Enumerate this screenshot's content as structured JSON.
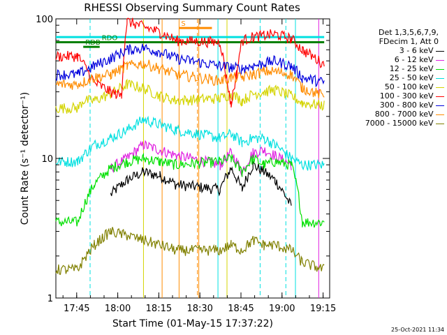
{
  "chart_data": {
    "type": "line",
    "title": "RHESSI Observing Summary Count Rates",
    "xlabel": "Start Time (01-May-15 17:37:22)",
    "ylabel": "Count Rate (s⁻¹ detector⁻¹)",
    "y_scale": "log",
    "ylim": [
      1,
      100
    ],
    "y_ticks": [
      {
        "value": 1,
        "label": "1"
      },
      {
        "value": 10,
        "label": "10"
      },
      {
        "value": 100,
        "label": "100"
      }
    ],
    "xlim_minutes_from_start": [
      0,
      100
    ],
    "x_ticks": [
      {
        "minutes": 7.6,
        "label": "17:45"
      },
      {
        "minutes": 22.6,
        "label": "18:00"
      },
      {
        "minutes": 37.6,
        "label": "18:15"
      },
      {
        "minutes": 52.6,
        "label": "18:30"
      },
      {
        "minutes": 67.6,
        "label": "18:45"
      },
      {
        "minutes": 82.6,
        "label": "19:00"
      },
      {
        "minutes": 97.6,
        "label": "19:15"
      }
    ],
    "legend": {
      "header_lines": [
        "Det 1,3,5,6,7,9,",
        "FDecim 1, Att 0"
      ],
      "position": "right"
    },
    "series": [
      {
        "name": "3 - 6 keV",
        "color": "#000000",
        "x": [
          14,
          20,
          26,
          32,
          38,
          44,
          60,
          64,
          68,
          72,
          76,
          80,
          86,
          90
        ],
        "values": [
          null,
          5.5,
          7.0,
          8.0,
          7.5,
          6.5,
          6.0,
          8.5,
          6.0,
          9.0,
          8.0,
          7.0,
          4.5,
          null
        ]
      },
      {
        "name": "6 - 12 keV",
        "color": "#e020e0",
        "x": [
          14,
          20,
          26,
          32,
          38,
          44,
          60,
          64,
          68,
          72,
          76,
          80,
          86,
          90
        ],
        "values": [
          null,
          8.5,
          10.0,
          12.5,
          11.5,
          10.5,
          9.0,
          11.0,
          8.0,
          11.0,
          11.5,
          10.5,
          9.0,
          null
        ]
      },
      {
        "name": "12 - 25 keV",
        "color": "#00e000",
        "x": [
          0,
          8,
          14,
          20,
          26,
          32,
          38,
          44,
          60,
          64,
          68,
          72,
          76,
          80,
          86,
          90,
          98
        ],
        "values": [
          3.5,
          3.5,
          6.5,
          8.5,
          9.5,
          10.0,
          9.5,
          9.0,
          9.5,
          10.0,
          8.0,
          10.0,
          9.0,
          9.5,
          9.0,
          3.5,
          3.5
        ]
      },
      {
        "name": "25 - 50 keV",
        "color": "#00e0e0",
        "x": [
          0,
          8,
          14,
          20,
          26,
          32,
          38,
          44,
          60,
          64,
          68,
          72,
          76,
          80,
          86,
          90,
          98
        ],
        "values": [
          9.5,
          9.5,
          12.5,
          14.0,
          16.0,
          19.0,
          17.5,
          16.0,
          14.0,
          15.0,
          13.0,
          14.0,
          14.0,
          12.5,
          10.0,
          9.0,
          9.0
        ]
      },
      {
        "name": "50 - 100 keV",
        "color": "#d4d400",
        "x": [
          0,
          8,
          10,
          14,
          20,
          26,
          32,
          38,
          44,
          60,
          64,
          68,
          72,
          76,
          80,
          86,
          90,
          98
        ],
        "values": [
          23,
          23,
          26,
          26,
          29,
          34,
          32,
          28,
          26,
          27,
          29,
          26,
          29,
          30,
          31,
          28,
          25,
          24
        ]
      },
      {
        "name": "100 - 300 keV",
        "color": "#ff0000",
        "x": [
          0,
          8,
          14,
          20,
          24,
          26,
          32,
          38,
          44,
          60,
          62,
          64,
          66,
          68,
          72,
          76,
          80,
          86,
          90,
          98
        ],
        "values": [
          54,
          54,
          35,
          30,
          28,
          96,
          88,
          80,
          70,
          68,
          40,
          24,
          40,
          70,
          74,
          76,
          78,
          72,
          60,
          47
        ]
      },
      {
        "name": "300 - 800 keV",
        "color": "#0000dd",
        "x": [
          0,
          8,
          14,
          20,
          26,
          32,
          38,
          44,
          60,
          64,
          68,
          72,
          76,
          80,
          86,
          90,
          98
        ],
        "values": [
          40,
          40,
          46,
          52,
          60,
          62,
          58,
          52,
          46,
          45,
          44,
          46,
          48,
          50,
          46,
          38,
          35
        ]
      },
      {
        "name": "800 - 7000 keV",
        "color": "#ff8c00",
        "x": [
          0,
          8,
          14,
          20,
          26,
          32,
          38,
          44,
          60,
          64,
          68,
          72,
          76,
          80,
          86,
          90,
          98
        ],
        "values": [
          34,
          34,
          38,
          40,
          46,
          48,
          44,
          40,
          36,
          38,
          38,
          40,
          42,
          42,
          40,
          32,
          28
        ]
      },
      {
        "name": "7000 - 15000 keV",
        "color": "#808000",
        "x": [
          0,
          8,
          14,
          20,
          26,
          32,
          38,
          44,
          60,
          64,
          68,
          72,
          76,
          80,
          86,
          90,
          98
        ],
        "values": [
          1.6,
          1.6,
          2.4,
          3.0,
          2.8,
          2.6,
          2.4,
          2.2,
          2.2,
          2.4,
          2.2,
          2.6,
          2.4,
          2.4,
          2.2,
          1.8,
          1.6
        ]
      }
    ],
    "annotations": {
      "dashed_vertical_markers": [
        {
          "minutes": 12.5,
          "color": "#00e0e0"
        },
        {
          "minutes": 51.7,
          "color": "#ff8c00"
        },
        {
          "minutes": 74.6,
          "color": "#00e0e0"
        },
        {
          "minutes": 84.0,
          "color": "#00e0e0"
        }
      ],
      "solid_vertical_markers": [
        {
          "minutes": 32.0,
          "color": "#d4d400"
        },
        {
          "minutes": 38.8,
          "color": "#ff8c00"
        },
        {
          "minutes": 45.0,
          "color": "#ff8c00"
        },
        {
          "minutes": 52.2,
          "color": "#ff8c00"
        },
        {
          "minutes": 59.2,
          "color": "#00e0e0"
        },
        {
          "minutes": 62.5,
          "color": "#d4d400"
        },
        {
          "minutes": 87.5,
          "color": "#00e0e0"
        },
        {
          "minutes": 96.0,
          "color": "#e020e0"
        }
      ],
      "flag_bars": [
        {
          "label": "",
          "start": 0,
          "end": 98,
          "value": 74,
          "color": "#00e0e0"
        },
        {
          "label": "",
          "start": 0,
          "end": 98,
          "value": 68,
          "color": "#008000"
        },
        {
          "label": "RDO",
          "start": 16,
          "end": 30,
          "value": 68,
          "color": "#008000"
        },
        {
          "label": "RDB",
          "start": 10,
          "end": 16,
          "value": 63,
          "color": "#008000"
        },
        {
          "label": "S",
          "start": 45,
          "end": 57,
          "value": 86,
          "color": "#ff8c00"
        }
      ]
    }
  },
  "timestamp": "25-Oct-2021 11:34"
}
